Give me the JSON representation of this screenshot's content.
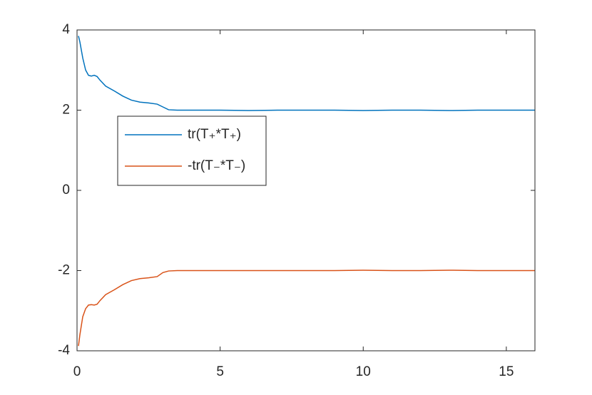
{
  "chart_data": {
    "type": "line",
    "x": [
      0.05,
      0.1,
      0.2,
      0.3,
      0.4,
      0.5,
      0.6,
      0.7,
      0.8,
      1.0,
      1.3,
      1.6,
      1.9,
      2.2,
      2.5,
      2.8,
      3.0,
      3.2,
      3.5,
      4,
      5,
      6,
      7,
      8,
      9,
      10,
      11,
      12,
      13,
      14,
      15,
      16
    ],
    "series": [
      {
        "name": "tr(T₊*T₊)",
        "color": "#0072BD",
        "values": [
          3.85,
          3.7,
          3.3,
          3.0,
          2.87,
          2.85,
          2.87,
          2.84,
          2.75,
          2.6,
          2.48,
          2.35,
          2.25,
          2.2,
          2.18,
          2.15,
          2.08,
          2.01,
          2.0,
          2.0,
          2.0,
          1.99,
          2.0,
          2.0,
          2.0,
          1.99,
          2.0,
          2.0,
          1.99,
          2.0,
          2.0,
          2.0
        ]
      },
      {
        "name": "-tr(T₋*T₋)",
        "color": "#D95319",
        "values": [
          -3.88,
          -3.6,
          -3.15,
          -2.95,
          -2.86,
          -2.85,
          -2.86,
          -2.84,
          -2.75,
          -2.6,
          -2.48,
          -2.35,
          -2.25,
          -2.2,
          -2.18,
          -2.15,
          -2.05,
          -2.01,
          -2.0,
          -2.0,
          -2.0,
          -2.0,
          -2.0,
          -2.0,
          -2.0,
          -1.99,
          -2.0,
          -2.0,
          -1.99,
          -2.0,
          -2.0,
          -2.0
        ]
      }
    ],
    "xlim": [
      0,
      16
    ],
    "xticks": [
      0,
      5,
      10,
      15
    ],
    "ylim": [
      -4,
      4
    ],
    "yticks": [
      -4,
      -2,
      0,
      2,
      4
    ],
    "grid": false,
    "legend": "upper left"
  }
}
